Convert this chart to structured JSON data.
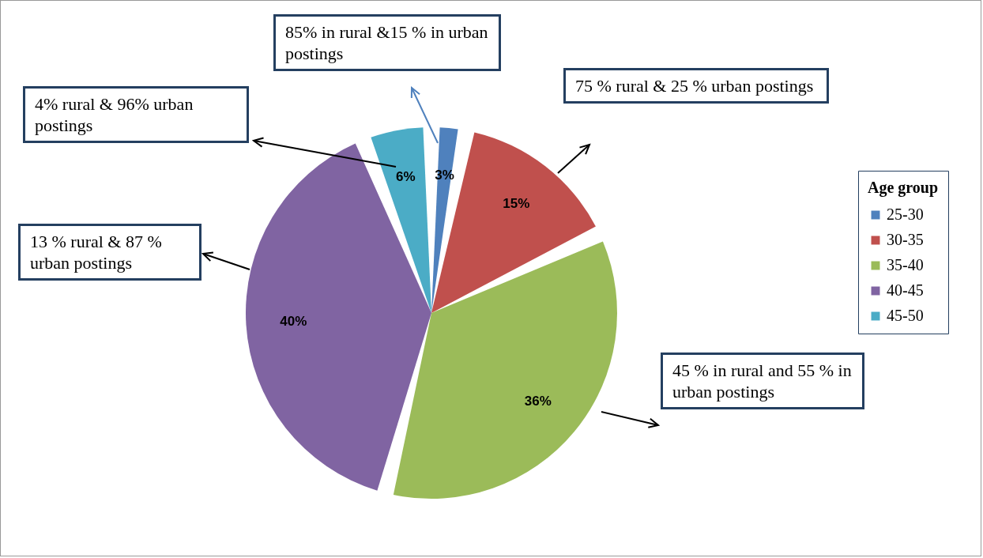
{
  "chart_data": {
    "type": "pie",
    "legend_title": "Age group",
    "legend": "right",
    "categories": [
      "25-30",
      "30-35",
      "35-40",
      "40-45",
      "45-50"
    ],
    "values": [
      3,
      15,
      36,
      40,
      6
    ],
    "colors": [
      "#4f81bd",
      "#c0504d",
      "#9bbb59",
      "#8064a2",
      "#4bacc6"
    ],
    "value_labels": [
      "3%",
      "15%",
      "36%",
      "40%",
      "6%"
    ],
    "annotations": [
      "85% in rural &15 % in urban postings",
      "75 % rural & 25 % urban postings",
      "45 % in rural and 55 % in urban postings",
      "13 % rural & 87 % urban postings",
      "4% rural & 96% urban postings"
    ]
  }
}
